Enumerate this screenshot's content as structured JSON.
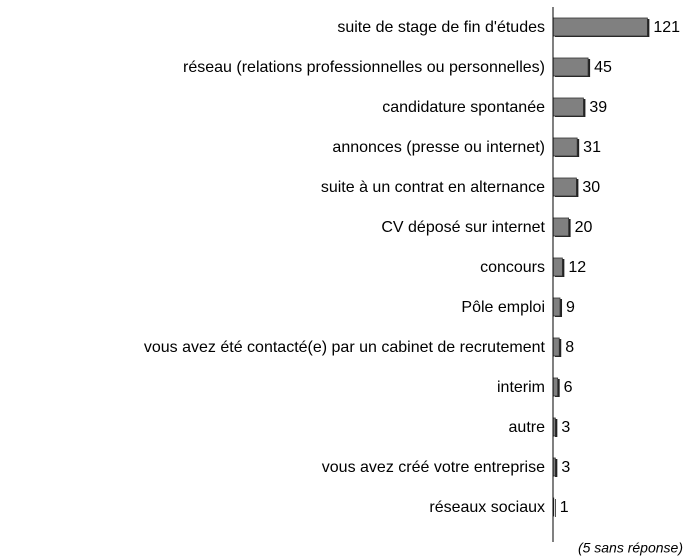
{
  "chart_data": {
    "type": "bar",
    "orientation": "horizontal",
    "categories": [
      "suite de stage de fin d'études",
      "réseau (relations professionnelles ou personnelles)",
      "candidature spontanée",
      "annonces (presse ou internet)",
      "suite à un contrat en alternance",
      "CV déposé sur internet",
      "concours",
      "Pôle emploi",
      "vous avez été contacté(e) par un cabinet de recrutement",
      "interim",
      "autre",
      "vous avez créé votre entreprise",
      "réseaux sociaux"
    ],
    "values": [
      121,
      45,
      39,
      31,
      30,
      20,
      12,
      9,
      8,
      6,
      3,
      3,
      1
    ],
    "color": "#808080",
    "xlim": [
      0,
      150
    ],
    "annotation": "(5 sans réponse)"
  }
}
